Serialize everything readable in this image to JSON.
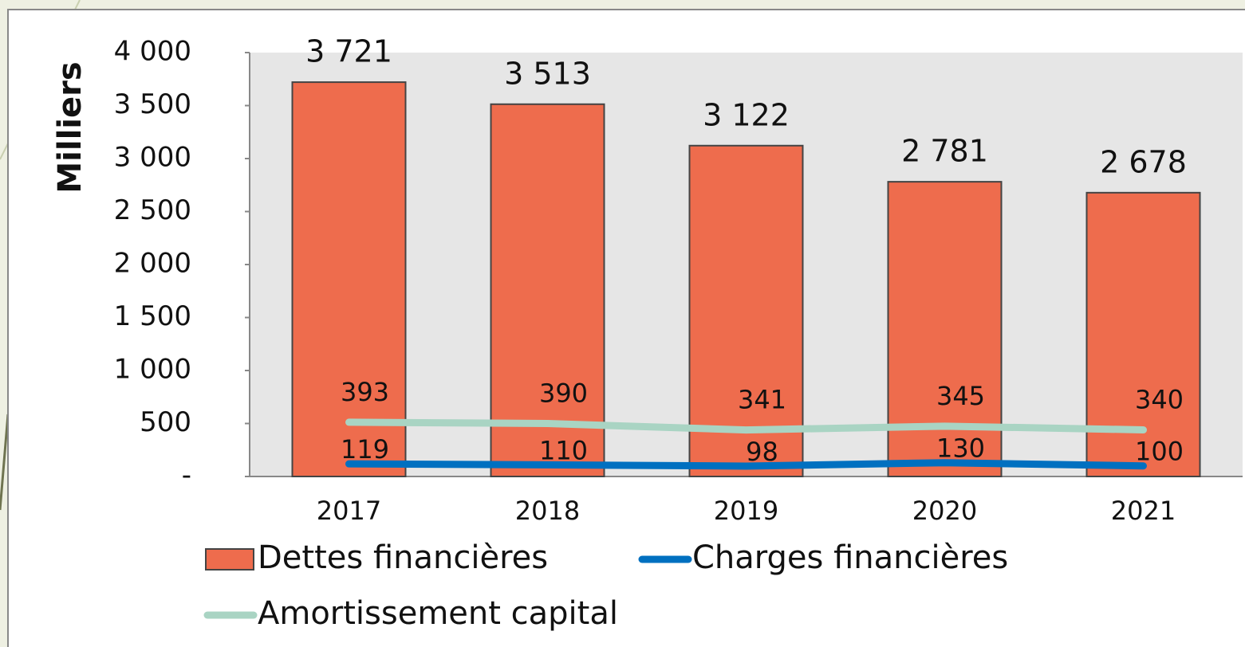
{
  "chart_data": {
    "type": "bar",
    "y_axis_label": "Milliers",
    "categories": [
      "2017",
      "2018",
      "2019",
      "2020",
      "2021"
    ],
    "line_stacking": "stacked",
    "series": [
      {
        "name": "Dettes financières",
        "type": "bar",
        "color": "#ee6c4d",
        "values": [
          3721,
          3513,
          3122,
          2781,
          2678
        ],
        "value_labels": [
          "3 721",
          "3 513",
          "3 122",
          "2 781",
          "2 678"
        ]
      },
      {
        "name": "Charges financières",
        "type": "line",
        "color": "#0070c0",
        "values": [
          119,
          110,
          98,
          130,
          100
        ]
      },
      {
        "name": "Amortissement capital",
        "type": "line",
        "color": "#a9d4c3",
        "values": [
          393,
          390,
          341,
          345,
          340
        ]
      }
    ],
    "ylim": [
      0,
      4000
    ],
    "yticks": [
      {
        "value": 0,
        "label": "-"
      },
      500,
      {
        "value": 1000,
        "label": "1 000"
      },
      {
        "value": 1500,
        "label": "1 500"
      },
      {
        "value": 2000,
        "label": "2 000"
      },
      {
        "value": 2500,
        "label": "2 500"
      },
      {
        "value": 3000,
        "label": "3 000"
      },
      {
        "value": 3500,
        "label": "3 500"
      },
      {
        "value": 4000,
        "label": "4 000"
      }
    ],
    "legend": "bottom"
  }
}
